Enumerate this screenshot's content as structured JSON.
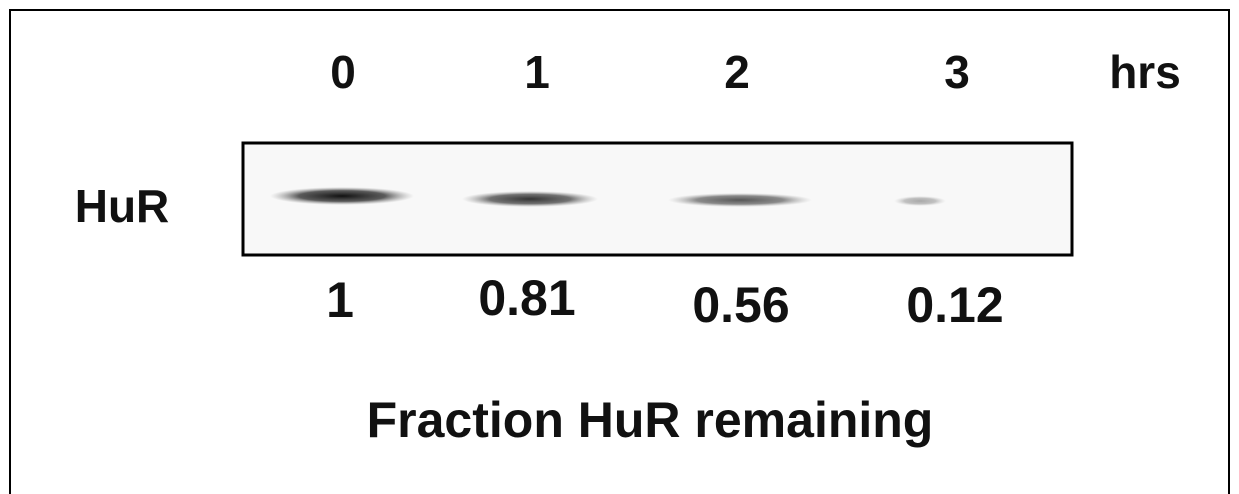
{
  "figure": {
    "time_points": [
      0,
      1,
      2,
      3
    ],
    "time_unit": "hrs",
    "row_label": "HuR",
    "fractions": [
      1,
      0.81,
      0.56,
      0.12
    ],
    "caption": "Fraction HuR remaining"
  }
}
